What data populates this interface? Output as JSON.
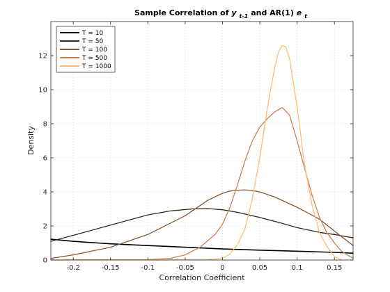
{
  "chart_data": {
    "type": "line",
    "title": {
      "prefix": "Sample Correlation of ",
      "var1": "y",
      "var1_sub": "t-1",
      "middle": " and AR(1) ",
      "var2": "e",
      "var2_sub": "t"
    },
    "xlabel": "Correlation Coefficient",
    "ylabel": "Density",
    "xlim": [
      -0.23,
      0.175
    ],
    "ylim": [
      0,
      14
    ],
    "xticks": [
      -0.2,
      -0.15,
      -0.1,
      -0.05,
      0,
      0.05,
      0.1,
      0.15
    ],
    "xtick_labels": [
      "-0.2",
      "-0.15",
      "-0.1",
      "-0.05",
      "0",
      "0.05",
      "0.1",
      "0.15"
    ],
    "yticks": [
      0,
      2,
      4,
      6,
      8,
      10,
      12
    ],
    "ytick_labels": [
      "0",
      "2",
      "4",
      "6",
      "8",
      "10",
      "12"
    ],
    "grid": true,
    "legend_position": "top-left",
    "series": [
      {
        "name": "T = 10",
        "color": "#000000",
        "x": [
          -0.23,
          -0.2,
          -0.15,
          -0.1,
          -0.05,
          0,
          0.05,
          0.1,
          0.15,
          0.175
        ],
        "y": [
          1.22,
          1.1,
          0.95,
          0.85,
          0.75,
          0.65,
          0.58,
          0.52,
          0.45,
          0.4
        ]
      },
      {
        "name": "T = 50",
        "color": "#3a2517",
        "x": [
          -0.23,
          -0.2,
          -0.15,
          -0.1,
          -0.07,
          -0.04,
          -0.02,
          0,
          0.02,
          0.05,
          0.08,
          0.1,
          0.13,
          0.15,
          0.175
        ],
        "y": [
          1.1,
          1.45,
          2.05,
          2.65,
          2.88,
          3.0,
          3.02,
          2.95,
          2.8,
          2.5,
          2.15,
          1.9,
          1.62,
          1.5,
          1.3
        ]
      },
      {
        "name": "T = 100",
        "color": "#8c5432",
        "x": [
          -0.23,
          -0.2,
          -0.15,
          -0.1,
          -0.05,
          -0.02,
          0,
          0.01,
          0.02,
          0.03,
          0.04,
          0.05,
          0.07,
          0.1,
          0.13,
          0.15,
          0.175
        ],
        "y": [
          0.1,
          0.3,
          0.75,
          1.5,
          2.6,
          3.5,
          3.92,
          4.05,
          4.1,
          4.12,
          4.08,
          4.0,
          3.7,
          3.1,
          2.4,
          1.7,
          0.85
        ]
      },
      {
        "name": "T = 500",
        "color": "#d07e4e",
        "x": [
          -0.23,
          -0.1,
          -0.07,
          -0.05,
          -0.03,
          -0.01,
          0,
          0.01,
          0.02,
          0.03,
          0.04,
          0.05,
          0.06,
          0.07,
          0.08,
          0.09,
          0.1,
          0.11,
          0.12,
          0.13,
          0.14,
          0.15,
          0.16,
          0.175
        ],
        "y": [
          0,
          0.02,
          0.1,
          0.3,
          0.75,
          1.5,
          2.1,
          3.1,
          4.4,
          5.8,
          7.0,
          7.8,
          8.3,
          8.7,
          8.95,
          8.5,
          7.0,
          5.4,
          3.8,
          2.5,
          1.6,
          1.0,
          0.5,
          0.1
        ]
      },
      {
        "name": "T = 1000",
        "color": "#fdbd73",
        "x": [
          -0.23,
          -0.02,
          0,
          0.01,
          0.02,
          0.03,
          0.04,
          0.05,
          0.06,
          0.07,
          0.075,
          0.08,
          0.085,
          0.09,
          0.1,
          0.11,
          0.12,
          0.13,
          0.14,
          0.15,
          0.16
        ],
        "y": [
          0,
          0.01,
          0.1,
          0.35,
          0.9,
          1.8,
          3.6,
          6.0,
          8.9,
          11.3,
          12.2,
          12.6,
          12.5,
          11.8,
          9.0,
          5.6,
          3.2,
          1.6,
          0.8,
          0.2,
          0
        ]
      }
    ]
  }
}
